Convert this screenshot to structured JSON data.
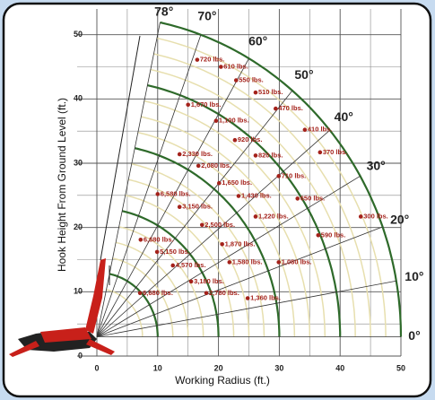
{
  "chart_data": {
    "type": "load-chart",
    "xlabel": "Working Radius (ft.)",
    "ylabel": "Hook Height From Ground Level (ft.)",
    "xlim": [
      0,
      50
    ],
    "ylim": [
      0,
      54
    ],
    "xticks": [
      0,
      10,
      20,
      30,
      40,
      50
    ],
    "yticks": [
      0,
      10,
      20,
      30,
      40,
      50
    ],
    "grid": true,
    "angles": [
      {
        "value": 0,
        "label": "0°"
      },
      {
        "value": 10,
        "label": "10°"
      },
      {
        "value": 20,
        "label": "20°"
      },
      {
        "value": 30,
        "label": "30°"
      },
      {
        "value": 40,
        "label": "40°"
      },
      {
        "value": 50,
        "label": "50°"
      },
      {
        "value": 60,
        "label": "60°"
      },
      {
        "value": 70,
        "label": "70°"
      },
      {
        "value": 78,
        "label": "78°"
      }
    ],
    "loads": {
      "color": "#a4221b",
      "x": [
        16.5,
        20.4,
        22.9,
        26.1,
        29.4,
        34.2,
        36.7,
        43.4,
        15.0,
        19.6,
        22.7,
        26.1,
        29.9,
        33.0,
        36.4,
        13.6,
        16.7,
        20.1,
        23.3,
        26.1,
        29.9,
        10.0,
        13.6,
        17.3,
        20.6,
        21.8,
        7.2,
        9.9,
        12.5,
        15.5,
        18.0,
        24.8,
        7.1
      ],
      "y": [
        46.1,
        45.0,
        42.9,
        41.0,
        38.5,
        35.2,
        31.7,
        21.7,
        39.1,
        36.6,
        33.6,
        31.2,
        28.0,
        24.5,
        18.8,
        31.4,
        29.6,
        26.9,
        24.9,
        21.7,
        14.6,
        25.2,
        23.2,
        20.4,
        17.4,
        14.6,
        18.1,
        16.2,
        14.1,
        11.6,
        9.8,
        9.0,
        9.8
      ],
      "values": [
        720,
        610,
        550,
        510,
        470,
        410,
        370,
        300,
        1670,
        1100,
        920,
        820,
        710,
        650,
        590,
        2330,
        2080,
        1650,
        1430,
        1220,
        1080,
        6580,
        3150,
        2500,
        1870,
        1580,
        6680,
        5150,
        4570,
        3180,
        2780,
        1360,
        6680
      ],
      "value_labels": [
        "720 lbs.",
        "610 lbs.",
        "550 lbs.",
        "510 lbs.",
        "470 lbs.",
        "410 lbs.",
        "370 lbs.",
        "300 lbs.",
        "1,670 lbs.",
        "1,100 lbs.",
        "920 lbs.",
        "820 lbs.",
        "710 lbs.",
        "650 lbs.",
        "590 lbs.",
        "2,330 lbs.",
        "2,080 lbs.",
        "1,650 lbs.",
        "1,430 lbs.",
        "1,220 lbs.",
        "1,080 lbs.",
        "6,580 lbs.",
        "3,150 lbs.",
        "2,500 lbs.",
        "1,870 lbs.",
        "1,580 lbs.",
        "6,680 lbs.",
        "5,150 lbs.",
        "4,570 lbs.",
        "3,180 lbs.",
        "2,780 lbs.",
        "1,360 lbs.",
        "6,680 lbs."
      ]
    }
  }
}
